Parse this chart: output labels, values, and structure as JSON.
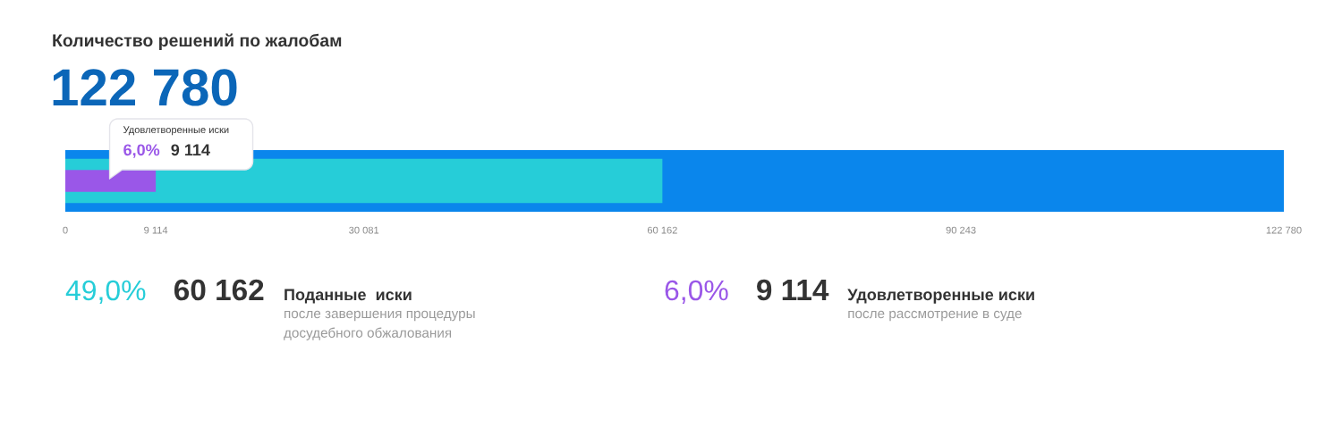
{
  "chart_data": {
    "type": "bar",
    "orientation": "horizontal",
    "title": "Количество решений по жалобам",
    "subtitle": "122 780",
    "categories": [
      null
    ],
    "series": [
      {
        "color": "#0a86ec",
        "values": [
          122780
        ]
      },
      {
        "color": "#26cdd8",
        "values": [
          60162
        ]
      },
      {
        "color": "#9a57e8",
        "values": [
          9114
        ]
      }
    ],
    "xlim": [
      0,
      122780
    ],
    "xticks": [
      0,
      {
        "value": 9114,
        "label": "9 114"
      },
      {
        "value": 30081,
        "label": "30 081"
      },
      {
        "value": 60162,
        "label": "60 162"
      },
      {
        "value": 90243,
        "label": "90 243"
      },
      {
        "value": 122780,
        "label": "122 780"
      }
    ],
    "tick_labels": "x",
    "annotations": [
      "49,0%",
      "60 162",
      "Поданные  иски",
      "после завершения процедуры\nдосудебного обжалования",
      "6,0%",
      "9 114",
      "Удовлетворенные иски",
      "после рассмотрение в суде",
      "Удовлетворенные иски",
      "6,0%",
      "9 114"
    ]
  }
}
